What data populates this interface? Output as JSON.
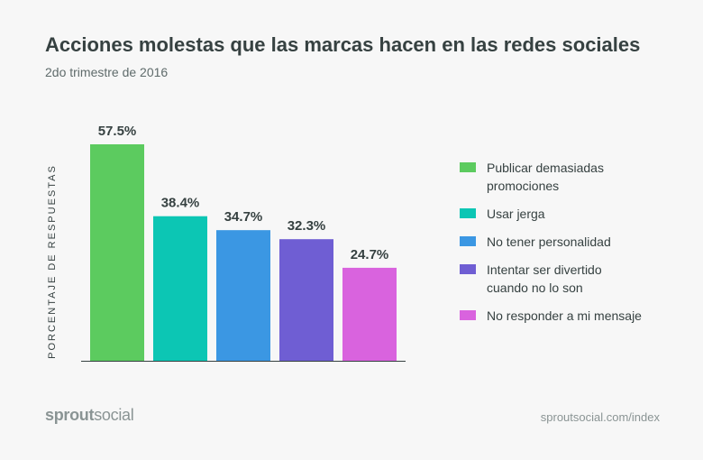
{
  "header": {
    "title": "Acciones molestas que las marcas hacen en las redes sociales",
    "subtitle": "2do trimestre de 2016"
  },
  "chart_data": {
    "type": "bar",
    "title": "Acciones molestas que las marcas hacen en las redes sociales",
    "subtitle": "2do trimestre de 2016",
    "xlabel": "",
    "ylabel": "PORCENTAJE DE RESPUESTAS",
    "categories": [
      "Publicar demasiadas promociones",
      "Usar jerga",
      "No tener personalidad",
      "Intentar ser divertido cuando no lo son",
      "No responder a mi mensaje"
    ],
    "values": [
      57.5,
      38.4,
      34.7,
      32.3,
      24.7
    ],
    "value_labels": [
      "57.5%",
      "38.4%",
      "34.7%",
      "32.3%",
      "24.7%"
    ],
    "colors": [
      "#5ccb5f",
      "#0cc6b4",
      "#3b97e3",
      "#6f5ed3",
      "#d963de"
    ],
    "ylim": [
      0,
      57.5
    ],
    "grid": false,
    "legend_position": "right"
  },
  "legend": {
    "items": [
      {
        "label": "Publicar demasiadas promociones",
        "color": "#5ccb5f"
      },
      {
        "label": "Usar jerga",
        "color": "#0cc6b4"
      },
      {
        "label": "No tener personalidad",
        "color": "#3b97e3"
      },
      {
        "label": "Intentar ser divertido cuando no lo son",
        "color": "#6f5ed3"
      },
      {
        "label": "No responder a mi mensaje",
        "color": "#d963de"
      }
    ]
  },
  "footer": {
    "brand_part1": "sprout",
    "brand_part2": "social",
    "url": "sproutsocial.com/index"
  }
}
